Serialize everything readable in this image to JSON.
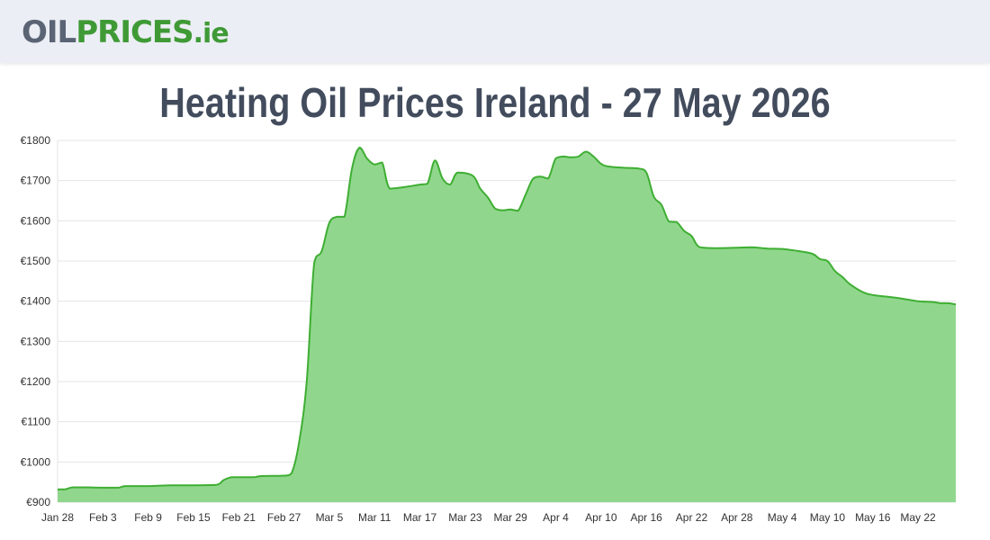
{
  "header": {
    "logo_part1": "OIL",
    "logo_part2": "PRICES",
    "logo_part3": ".ie"
  },
  "colors": {
    "line": "#3fae33",
    "fill": "#90d78d",
    "grid": "#e5e5e5",
    "logo_grey": "#5b6475",
    "logo_green": "#3f9a36"
  },
  "chart_data": {
    "type": "area",
    "title": "Heating Oil Prices Ireland - 27 May 2026",
    "xlabel": "",
    "ylabel": "",
    "ylim": [
      900,
      1800
    ],
    "grid": true,
    "legend": "none",
    "y_ticks": [
      900,
      1000,
      1100,
      1200,
      1300,
      1400,
      1500,
      1600,
      1700,
      1800
    ],
    "y_tick_prefix": "€",
    "x_tick_labels": [
      "Jan 28",
      "Feb 3",
      "Feb 9",
      "Feb 15",
      "Feb 21",
      "Feb 27",
      "Mar 5",
      "Mar 11",
      "Mar 17",
      "Mar 23",
      "Mar 29",
      "Apr 4",
      "Apr 10",
      "Apr 16",
      "Apr 22",
      "Apr 28",
      "May 4",
      "May 10",
      "May 16",
      "May 22"
    ],
    "x_start": "2026-01-28",
    "x_end": "2026-05-27",
    "series": [
      {
        "name": "",
        "points": [
          [
            "2026-01-28",
            932
          ],
          [
            "2026-01-29",
            932
          ],
          [
            "2026-01-30",
            937
          ],
          [
            "2026-02-01",
            937
          ],
          [
            "2026-02-03",
            936
          ],
          [
            "2026-02-05",
            936
          ],
          [
            "2026-02-06",
            940
          ],
          [
            "2026-02-09",
            940
          ],
          [
            "2026-02-12",
            942
          ],
          [
            "2026-02-15",
            942
          ],
          [
            "2026-02-18",
            943
          ],
          [
            "2026-02-19",
            955
          ],
          [
            "2026-02-20",
            962
          ],
          [
            "2026-02-21",
            962
          ],
          [
            "2026-02-23",
            962
          ],
          [
            "2026-02-24",
            965
          ],
          [
            "2026-02-27",
            966
          ],
          [
            "2026-02-28",
            972
          ],
          [
            "2026-03-01",
            1050
          ],
          [
            "2026-03-02",
            1200
          ],
          [
            "2026-03-03",
            1495
          ],
          [
            "2026-03-04",
            1525
          ],
          [
            "2026-03-05",
            1595
          ],
          [
            "2026-03-06",
            1610
          ],
          [
            "2026-03-07",
            1610
          ],
          [
            "2026-03-08",
            1730
          ],
          [
            "2026-03-09",
            1782
          ],
          [
            "2026-03-10",
            1755
          ],
          [
            "2026-03-11",
            1740
          ],
          [
            "2026-03-12",
            1745
          ],
          [
            "2026-03-13",
            1680
          ],
          [
            "2026-03-15",
            1684
          ],
          [
            "2026-03-17",
            1690
          ],
          [
            "2026-03-18",
            1692
          ],
          [
            "2026-03-19",
            1750
          ],
          [
            "2026-03-20",
            1705
          ],
          [
            "2026-03-21",
            1690
          ],
          [
            "2026-03-22",
            1720
          ],
          [
            "2026-03-24",
            1712
          ],
          [
            "2026-03-25",
            1680
          ],
          [
            "2026-03-26",
            1658
          ],
          [
            "2026-03-27",
            1630
          ],
          [
            "2026-03-28",
            1626
          ],
          [
            "2026-03-29",
            1628
          ],
          [
            "2026-03-30",
            1625
          ],
          [
            "2026-03-31",
            1665
          ],
          [
            "2026-04-01",
            1705
          ],
          [
            "2026-04-02",
            1710
          ],
          [
            "2026-04-03",
            1705
          ],
          [
            "2026-04-04",
            1755
          ],
          [
            "2026-04-05",
            1760
          ],
          [
            "2026-04-06",
            1758
          ],
          [
            "2026-04-07",
            1760
          ],
          [
            "2026-04-08",
            1772
          ],
          [
            "2026-04-09",
            1760
          ],
          [
            "2026-04-10",
            1742
          ],
          [
            "2026-04-11",
            1735
          ],
          [
            "2026-04-13",
            1732
          ],
          [
            "2026-04-15",
            1730
          ],
          [
            "2026-04-16",
            1720
          ],
          [
            "2026-04-17",
            1660
          ],
          [
            "2026-04-18",
            1640
          ],
          [
            "2026-04-19",
            1598
          ],
          [
            "2026-04-20",
            1597
          ],
          [
            "2026-04-21",
            1575
          ],
          [
            "2026-04-22",
            1562
          ],
          [
            "2026-04-23",
            1535
          ],
          [
            "2026-04-25",
            1532
          ],
          [
            "2026-04-28",
            1533
          ],
          [
            "2026-04-30",
            1534
          ],
          [
            "2026-05-02",
            1531
          ],
          [
            "2026-05-04",
            1530
          ],
          [
            "2026-05-06",
            1525
          ],
          [
            "2026-05-08",
            1518
          ],
          [
            "2026-05-09",
            1505
          ],
          [
            "2026-05-10",
            1500
          ],
          [
            "2026-05-11",
            1475
          ],
          [
            "2026-05-12",
            1460
          ],
          [
            "2026-05-13",
            1442
          ],
          [
            "2026-05-15",
            1420
          ],
          [
            "2026-05-17",
            1413
          ],
          [
            "2026-05-18",
            1411
          ],
          [
            "2026-05-20",
            1406
          ],
          [
            "2026-05-22",
            1400
          ],
          [
            "2026-05-24",
            1398
          ],
          [
            "2026-05-25",
            1395
          ],
          [
            "2026-05-26",
            1395
          ],
          [
            "2026-05-27",
            1392
          ]
        ]
      }
    ]
  }
}
